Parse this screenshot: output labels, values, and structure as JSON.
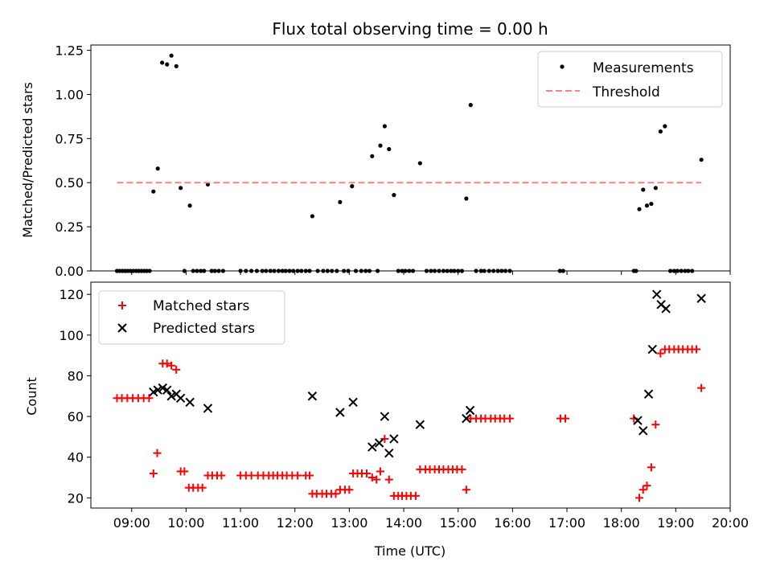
{
  "figure_title": "Flux total observing time = 0.00 h",
  "chart_data": [
    {
      "type": "scatter",
      "title": "Flux total observing time = 0.00 h",
      "xlabel": "",
      "ylabel": "Matched/Predicted stars",
      "x_unit": "hour (UTC)",
      "xlim": [
        8.25,
        20.0
      ],
      "ylim": [
        0.0,
        1.28
      ],
      "yticks": [
        0.0,
        0.25,
        0.5,
        0.75,
        1.0,
        1.25
      ],
      "ytick_labels": [
        "0.00",
        "0.25",
        "0.50",
        "0.75",
        "1.00",
        "1.25"
      ],
      "legend": {
        "placement": "top-right",
        "entries": [
          "Measurements",
          "Threshold"
        ]
      },
      "series": [
        {
          "name": "Measurements",
          "marker": "dot",
          "color": "#000000",
          "points": [
            [
              8.73,
              0
            ],
            [
              8.78,
              0
            ],
            [
              8.83,
              0
            ],
            [
              8.88,
              0
            ],
            [
              8.93,
              0
            ],
            [
              8.98,
              0
            ],
            [
              9.03,
              0
            ],
            [
              9.08,
              0
            ],
            [
              9.13,
              0
            ],
            [
              9.18,
              0
            ],
            [
              9.23,
              0
            ],
            [
              9.28,
              0
            ],
            [
              9.33,
              0
            ],
            [
              9.4,
              0.45
            ],
            [
              9.48,
              0.58
            ],
            [
              9.56,
              1.18
            ],
            [
              9.65,
              1.17
            ],
            [
              9.73,
              1.22
            ],
            [
              9.82,
              1.16
            ],
            [
              9.9,
              0.47
            ],
            [
              9.97,
              0
            ],
            [
              10.07,
              0.37
            ],
            [
              10.13,
              0
            ],
            [
              10.2,
              0
            ],
            [
              10.27,
              0
            ],
            [
              10.33,
              0
            ],
            [
              10.4,
              0.49
            ],
            [
              10.47,
              0
            ],
            [
              10.53,
              0
            ],
            [
              10.6,
              0
            ],
            [
              10.68,
              0
            ],
            [
              11.0,
              0
            ],
            [
              11.1,
              0
            ],
            [
              11.2,
              0
            ],
            [
              11.3,
              0
            ],
            [
              11.4,
              0
            ],
            [
              11.47,
              0
            ],
            [
              11.55,
              0
            ],
            [
              11.62,
              0
            ],
            [
              11.7,
              0
            ],
            [
              11.77,
              0
            ],
            [
              11.83,
              0
            ],
            [
              11.9,
              0
            ],
            [
              11.97,
              0
            ],
            [
              12.05,
              0
            ],
            [
              12.12,
              0
            ],
            [
              12.2,
              0
            ],
            [
              12.27,
              0
            ],
            [
              12.32,
              0.31
            ],
            [
              12.42,
              0
            ],
            [
              12.52,
              0
            ],
            [
              12.6,
              0
            ],
            [
              12.68,
              0
            ],
            [
              12.77,
              0
            ],
            [
              12.83,
              0.39
            ],
            [
              12.9,
              0
            ],
            [
              12.98,
              0
            ],
            [
              13.05,
              0.48
            ],
            [
              13.12,
              0
            ],
            [
              13.22,
              0
            ],
            [
              13.3,
              0
            ],
            [
              13.37,
              0
            ],
            [
              13.42,
              0.65
            ],
            [
              13.52,
              0
            ],
            [
              13.57,
              0.71
            ],
            [
              13.65,
              0.82
            ],
            [
              13.73,
              0.69
            ],
            [
              13.82,
              0.43
            ],
            [
              13.9,
              0
            ],
            [
              13.97,
              0
            ],
            [
              14.03,
              0
            ],
            [
              14.1,
              0
            ],
            [
              14.17,
              0
            ],
            [
              14.3,
              0.61
            ],
            [
              14.42,
              0
            ],
            [
              14.5,
              0
            ],
            [
              14.57,
              0
            ],
            [
              14.65,
              0
            ],
            [
              14.73,
              0
            ],
            [
              14.8,
              0
            ],
            [
              14.87,
              0
            ],
            [
              14.93,
              0
            ],
            [
              15.0,
              0
            ],
            [
              15.07,
              0
            ],
            [
              15.15,
              0.41
            ],
            [
              15.23,
              0.94
            ],
            [
              15.33,
              0
            ],
            [
              15.42,
              0
            ],
            [
              15.48,
              0
            ],
            [
              15.57,
              0
            ],
            [
              15.65,
              0
            ],
            [
              15.73,
              0
            ],
            [
              15.8,
              0
            ],
            [
              15.87,
              0
            ],
            [
              15.95,
              0
            ],
            [
              16.87,
              0
            ],
            [
              16.93,
              0
            ],
            [
              18.23,
              0
            ],
            [
              18.27,
              0
            ],
            [
              18.33,
              0.35
            ],
            [
              18.4,
              0.46
            ],
            [
              18.47,
              0.37
            ],
            [
              18.55,
              0.38
            ],
            [
              18.63,
              0.47
            ],
            [
              18.72,
              0.79
            ],
            [
              18.8,
              0.82
            ],
            [
              18.9,
              0
            ],
            [
              18.97,
              0
            ],
            [
              19.03,
              0
            ],
            [
              19.1,
              0
            ],
            [
              19.17,
              0
            ],
            [
              19.23,
              0
            ],
            [
              19.3,
              0
            ],
            [
              19.47,
              0.63
            ]
          ]
        },
        {
          "name": "Threshold",
          "style": "dashed",
          "color": "#ff8080",
          "points": [
            [
              8.73,
              0.5
            ],
            [
              19.47,
              0.5
            ]
          ]
        }
      ]
    },
    {
      "type": "scatter",
      "title": "",
      "xlabel": "Time (UTC)",
      "ylabel": "Count",
      "x_unit": "hour (UTC)",
      "xlim": [
        8.25,
        20.0
      ],
      "ylim": [
        15,
        126
      ],
      "yticks": [
        20,
        40,
        60,
        80,
        100,
        120
      ],
      "xtick_labels": [
        "09:00",
        "10:00",
        "11:00",
        "12:00",
        "13:00",
        "14:00",
        "15:00",
        "16:00",
        "17:00",
        "18:00",
        "19:00",
        "20:00"
      ],
      "legend": {
        "placement": "top-left",
        "entries": [
          "Matched stars",
          "Predicted stars"
        ]
      },
      "series": [
        {
          "name": "Matched stars",
          "marker": "plus",
          "color": "#ff0000",
          "points": [
            [
              8.73,
              69
            ],
            [
              8.82,
              69
            ],
            [
              8.92,
              69
            ],
            [
              9.02,
              69
            ],
            [
              9.12,
              69
            ],
            [
              9.22,
              69
            ],
            [
              9.32,
              69
            ],
            [
              9.4,
              32
            ],
            [
              9.47,
              42
            ],
            [
              9.57,
              86
            ],
            [
              9.65,
              86
            ],
            [
              9.73,
              85
            ],
            [
              9.82,
              83
            ],
            [
              9.9,
              33
            ],
            [
              9.97,
              33
            ],
            [
              10.05,
              25
            ],
            [
              10.13,
              25
            ],
            [
              10.22,
              25
            ],
            [
              10.3,
              25
            ],
            [
              10.4,
              31
            ],
            [
              10.48,
              31
            ],
            [
              10.57,
              31
            ],
            [
              10.65,
              31
            ],
            [
              11.0,
              31
            ],
            [
              11.1,
              31
            ],
            [
              11.2,
              31
            ],
            [
              11.32,
              31
            ],
            [
              11.42,
              31
            ],
            [
              11.52,
              31
            ],
            [
              11.6,
              31
            ],
            [
              11.68,
              31
            ],
            [
              11.77,
              31
            ],
            [
              11.85,
              31
            ],
            [
              11.95,
              31
            ],
            [
              12.05,
              31
            ],
            [
              12.2,
              31
            ],
            [
              12.27,
              31
            ],
            [
              12.32,
              22
            ],
            [
              12.4,
              22
            ],
            [
              12.5,
              22
            ],
            [
              12.58,
              22
            ],
            [
              12.67,
              22
            ],
            [
              12.75,
              22
            ],
            [
              12.83,
              24
            ],
            [
              12.92,
              24
            ],
            [
              13.0,
              24
            ],
            [
              13.07,
              32
            ],
            [
              13.15,
              32
            ],
            [
              13.23,
              32
            ],
            [
              13.32,
              32
            ],
            [
              13.42,
              30
            ],
            [
              13.5,
              29
            ],
            [
              13.57,
              33
            ],
            [
              13.65,
              49
            ],
            [
              13.73,
              29
            ],
            [
              13.82,
              21
            ],
            [
              13.9,
              21
            ],
            [
              13.97,
              21
            ],
            [
              14.05,
              21
            ],
            [
              14.13,
              21
            ],
            [
              14.22,
              21
            ],
            [
              14.3,
              34
            ],
            [
              14.4,
              34
            ],
            [
              14.48,
              34
            ],
            [
              14.57,
              34
            ],
            [
              14.65,
              34
            ],
            [
              14.73,
              34
            ],
            [
              14.82,
              34
            ],
            [
              14.9,
              34
            ],
            [
              14.98,
              34
            ],
            [
              15.07,
              34
            ],
            [
              15.15,
              24
            ],
            [
              15.23,
              59
            ],
            [
              15.33,
              59
            ],
            [
              15.42,
              59
            ],
            [
              15.5,
              59
            ],
            [
              15.6,
              59
            ],
            [
              15.68,
              59
            ],
            [
              15.77,
              59
            ],
            [
              15.85,
              59
            ],
            [
              15.95,
              59
            ],
            [
              16.88,
              59
            ],
            [
              16.97,
              59
            ],
            [
              18.23,
              59
            ],
            [
              18.33,
              20
            ],
            [
              18.4,
              24
            ],
            [
              18.47,
              26
            ],
            [
              18.55,
              35
            ],
            [
              18.63,
              56
            ],
            [
              18.72,
              91
            ],
            [
              18.8,
              93
            ],
            [
              18.88,
              93
            ],
            [
              18.97,
              93
            ],
            [
              19.05,
              93
            ],
            [
              19.13,
              93
            ],
            [
              19.22,
              93
            ],
            [
              19.3,
              93
            ],
            [
              19.38,
              93
            ],
            [
              19.47,
              74
            ]
          ]
        },
        {
          "name": "Predicted stars",
          "marker": "x",
          "color": "#000000",
          "points": [
            [
              9.4,
              72
            ],
            [
              9.48,
              73
            ],
            [
              9.57,
              74
            ],
            [
              9.65,
              73
            ],
            [
              9.73,
              70
            ],
            [
              9.82,
              71
            ],
            [
              9.9,
              69
            ],
            [
              10.07,
              67
            ],
            [
              10.4,
              64
            ],
            [
              12.32,
              70
            ],
            [
              12.83,
              62
            ],
            [
              13.07,
              67
            ],
            [
              13.42,
              45
            ],
            [
              13.55,
              47
            ],
            [
              13.65,
              60
            ],
            [
              13.73,
              42
            ],
            [
              13.82,
              49
            ],
            [
              14.3,
              56
            ],
            [
              15.15,
              59
            ],
            [
              15.22,
              63
            ],
            [
              18.3,
              58
            ],
            [
              18.4,
              53
            ],
            [
              18.5,
              71
            ],
            [
              18.57,
              93
            ],
            [
              18.65,
              120
            ],
            [
              18.73,
              115
            ],
            [
              18.82,
              113
            ],
            [
              19.47,
              118
            ]
          ]
        }
      ]
    }
  ]
}
